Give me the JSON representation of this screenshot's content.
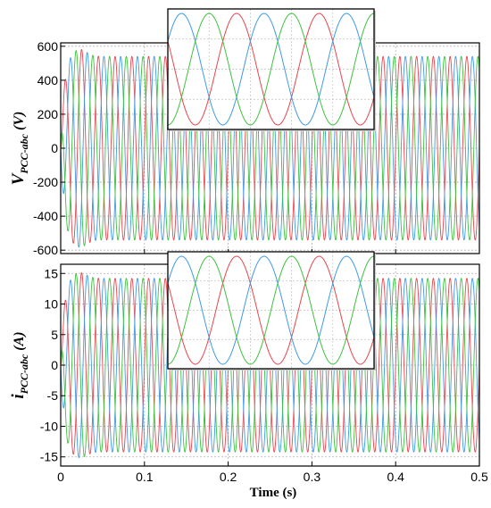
{
  "chart_data": [
    {
      "type": "line",
      "ylabel_main": "V",
      "ylabel_sub": "PCC-abc",
      "ylabel_unit": " (V)",
      "xlim": [
        0,
        0.5
      ],
      "ylim": [
        -620,
        620
      ],
      "yticks": [
        -600,
        -400,
        -200,
        0,
        200,
        400,
        600
      ],
      "yticklabels": [
        "-600",
        "-400",
        "-200",
        "0",
        "200",
        "400",
        "600"
      ],
      "grid": true,
      "frequency_hz": 50,
      "steady_amplitude": 540,
      "peak_transient_amplitude": 585,
      "series": [
        {
          "phase_deg": 0,
          "color": "#e8454f"
        },
        {
          "phase_deg": -120,
          "color": "#3f9ae8"
        },
        {
          "phase_deg": 120,
          "color": "#3ec23e"
        }
      ],
      "inset": {
        "description": "zoomed view",
        "cycles": 2.5
      }
    },
    {
      "type": "line",
      "ylabel_main": "i",
      "ylabel_sub": "PCC-abc",
      "ylabel_unit": " (A)",
      "xlim": [
        0,
        0.5
      ],
      "ylim": [
        -16.5,
        16.5
      ],
      "yticks": [
        -15,
        -10,
        -5,
        0,
        5,
        10,
        15
      ],
      "yticklabels": [
        "-15",
        "-10",
        "-5",
        "0",
        "5",
        "10",
        "15"
      ],
      "xticks": [
        0,
        0.1,
        0.2,
        0.3,
        0.4,
        0.5
      ],
      "xticklabels": [
        "0",
        "0.1",
        "0.2",
        "0.3",
        "0.4",
        "0.5"
      ],
      "xlabel": "Time (s)",
      "grid": true,
      "frequency_hz": 50,
      "steady_amplitude": 14.2,
      "peak_transient_amplitude": 15.2,
      "series": [
        {
          "phase_deg": 0,
          "color": "#e8454f"
        },
        {
          "phase_deg": -120,
          "color": "#3f9ae8"
        },
        {
          "phase_deg": 120,
          "color": "#3ec23e"
        }
      ],
      "inset": {
        "description": "zoomed view",
        "cycles": 2.5
      }
    }
  ]
}
